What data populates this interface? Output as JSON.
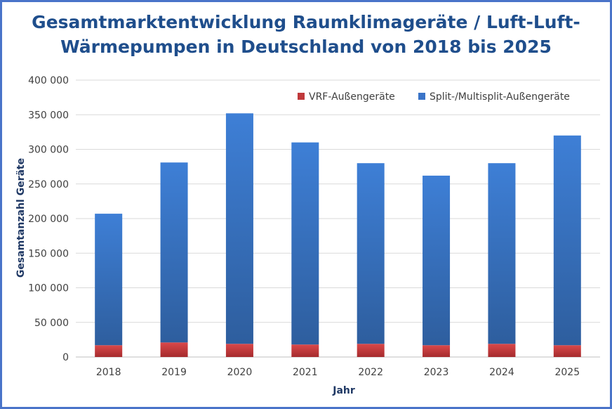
{
  "chart_data": {
    "type": "bar",
    "stacked": true,
    "title": "Gesamtmarktentwicklung Raumklimageräte / Luft-Luft-Wärmepumpen in Deutschland von 2018 bis 2025",
    "title_line1": "Gesamtmarktentwicklung Raumklimageräte / Luft-Luft-",
    "title_line2": "Wärmepumpen in Deutschland von 2018 bis 2025",
    "xlabel": "Jahr",
    "ylabel": "Gesamtanzahl Geräte",
    "ylim": [
      0,
      400000
    ],
    "yticks": [
      "0",
      "50 000",
      "100 000",
      "150 000",
      "200 000",
      "250 000",
      "300 000",
      "350 000",
      "400 000"
    ],
    "ytick_values": [
      0,
      50000,
      100000,
      150000,
      200000,
      250000,
      300000,
      350000,
      400000
    ],
    "categories": [
      "2018",
      "2019",
      "2020",
      "2021",
      "2022",
      "2023",
      "2024",
      "2025"
    ],
    "series": [
      {
        "name": "VRF-Außengeräte",
        "color": "#c0393b",
        "values": [
          17000,
          21000,
          19000,
          18000,
          19000,
          17000,
          19000,
          17000
        ]
      },
      {
        "name": "Split-/Multisplit-Außengeräte",
        "color": "#3a74c8",
        "values": [
          190000,
          260000,
          333000,
          292000,
          261000,
          245000,
          261000,
          303000
        ]
      }
    ],
    "grid": true,
    "legend_position": "top-right"
  }
}
